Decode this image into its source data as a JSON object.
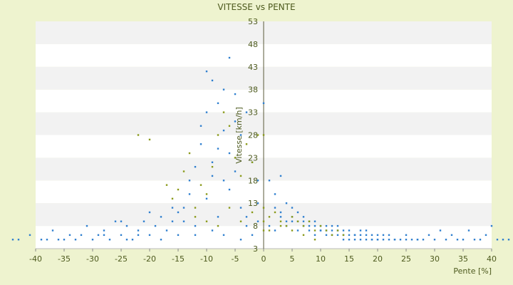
{
  "chart_data": {
    "type": "scatter",
    "title": "VITESSE vs PENTE",
    "xlabel": "Pente [%]",
    "ylabel": "Vitesse [km/h]",
    "xlim": [
      -40,
      40
    ],
    "ylim": [
      3,
      53
    ],
    "x_ticks": [
      "-40",
      "-35",
      "-30",
      "-25",
      "-20",
      "-15",
      "-10",
      "-5",
      "0",
      "5",
      "10",
      "15",
      "20",
      "25",
      "30",
      "35",
      "40"
    ],
    "y_ticks": [
      "3",
      "8",
      "13",
      "18",
      "23",
      "28",
      "33",
      "38",
      "43",
      "48",
      "53"
    ],
    "grid": "horizontal alternating bands",
    "colors": {
      "background": "#eef3cf",
      "plot_band_light": "#ffffff",
      "plot_band_dark": "#f2f2f2",
      "series_blue": "#2f7fcf",
      "series_olive": "#8a9a1a",
      "axis": "#4d5a1e"
    },
    "series": [
      {
        "color": "#2f7fcf",
        "points": [
          [
            -44,
            5
          ],
          [
            -43,
            5
          ],
          [
            -41,
            6
          ],
          [
            -39,
            5
          ],
          [
            -38,
            5
          ],
          [
            -37,
            7
          ],
          [
            -36,
            5
          ],
          [
            -35,
            5
          ],
          [
            -34,
            6
          ],
          [
            -33,
            5
          ],
          [
            -32,
            6
          ],
          [
            -31,
            8
          ],
          [
            -30,
            5
          ],
          [
            -29,
            6
          ],
          [
            -28,
            7
          ],
          [
            -27,
            5
          ],
          [
            -26,
            9
          ],
          [
            -25,
            6
          ],
          [
            -24,
            8
          ],
          [
            -23,
            5
          ],
          [
            -22,
            7
          ],
          [
            -21,
            9
          ],
          [
            -20,
            6
          ],
          [
            -19,
            8
          ],
          [
            -18,
            10
          ],
          [
            -17,
            7
          ],
          [
            -16,
            9
          ],
          [
            -15,
            6
          ],
          [
            -14,
            12
          ],
          [
            -13,
            15
          ],
          [
            -12,
            21
          ],
          [
            -11,
            30
          ],
          [
            -10,
            42
          ],
          [
            -9,
            40
          ],
          [
            -8,
            35
          ],
          [
            -7,
            38
          ],
          [
            -6,
            45
          ],
          [
            -5,
            37
          ],
          [
            -4,
            28
          ],
          [
            -3,
            33
          ],
          [
            -2,
            22
          ],
          [
            -1,
            18
          ],
          [
            0,
            35
          ],
          [
            -25,
            9
          ],
          [
            -22,
            6
          ],
          [
            -18,
            5
          ],
          [
            -15,
            11
          ],
          [
            -12,
            8
          ],
          [
            -10,
            14
          ],
          [
            -8,
            10
          ],
          [
            -6,
            16
          ],
          [
            -5,
            20
          ],
          [
            -4,
            12
          ],
          [
            -3,
            8
          ],
          [
            -2,
            6
          ],
          [
            -1,
            9
          ],
          [
            -11,
            26
          ],
          [
            -9,
            22
          ],
          [
            -8,
            25
          ],
          [
            -7,
            29
          ],
          [
            -6,
            24
          ],
          [
            -5,
            31
          ],
          [
            -10,
            33
          ],
          [
            -9,
            19
          ],
          [
            -7,
            18
          ],
          [
            -13,
            18
          ],
          [
            -14,
            9
          ],
          [
            -16,
            12
          ],
          [
            -20,
            11
          ],
          [
            -24,
            5
          ],
          [
            -28,
            6
          ],
          [
            -12,
            6
          ],
          [
            -9,
            7
          ],
          [
            -7,
            6
          ],
          [
            -4,
            5
          ],
          [
            -3,
            10
          ],
          [
            -1,
            13
          ],
          [
            1,
            8
          ],
          [
            2,
            7
          ],
          [
            3,
            10
          ],
          [
            4,
            8
          ],
          [
            5,
            9
          ],
          [
            6,
            7
          ],
          [
            7,
            8
          ],
          [
            8,
            7
          ],
          [
            9,
            6
          ],
          [
            10,
            7
          ],
          [
            11,
            6
          ],
          [
            12,
            7
          ],
          [
            13,
            6
          ],
          [
            14,
            6
          ],
          [
            15,
            5
          ],
          [
            16,
            6
          ],
          [
            17,
            5
          ],
          [
            18,
            5
          ],
          [
            19,
            6
          ],
          [
            20,
            5
          ],
          [
            21,
            5
          ],
          [
            22,
            6
          ],
          [
            23,
            5
          ],
          [
            24,
            5
          ],
          [
            25,
            6
          ],
          [
            26,
            5
          ],
          [
            27,
            5
          ],
          [
            28,
            5
          ],
          [
            30,
            5
          ],
          [
            31,
            7
          ],
          [
            33,
            6
          ],
          [
            35,
            5
          ],
          [
            36,
            7
          ],
          [
            38,
            5
          ],
          [
            40,
            8
          ],
          [
            42,
            5
          ],
          [
            43,
            5
          ],
          [
            2,
            12
          ],
          [
            3,
            11
          ],
          [
            4,
            9
          ],
          [
            5,
            10
          ],
          [
            6,
            9
          ],
          [
            7,
            10
          ],
          [
            8,
            9
          ],
          [
            9,
            9
          ],
          [
            10,
            8
          ],
          [
            11,
            8
          ],
          [
            12,
            8
          ],
          [
            13,
            7
          ],
          [
            14,
            7
          ],
          [
            15,
            6
          ],
          [
            16,
            6
          ],
          [
            17,
            7
          ],
          [
            18,
            6
          ],
          [
            19,
            5
          ],
          [
            20,
            5
          ],
          [
            21,
            6
          ],
          [
            22,
            5
          ],
          [
            23,
            5
          ],
          [
            25,
            5
          ],
          [
            27,
            5
          ],
          [
            29,
            6
          ],
          [
            32,
            5
          ],
          [
            34,
            5
          ],
          [
            37,
            5
          ],
          [
            39,
            6
          ],
          [
            41,
            5
          ],
          [
            1,
            18
          ],
          [
            2,
            15
          ],
          [
            3,
            19
          ],
          [
            4,
            13
          ],
          [
            5,
            12
          ],
          [
            6,
            11
          ],
          [
            7,
            9
          ],
          [
            8,
            8
          ],
          [
            9,
            8
          ],
          [
            10,
            7
          ],
          [
            11,
            7
          ],
          [
            12,
            6
          ],
          [
            13,
            8
          ],
          [
            14,
            5
          ],
          [
            15,
            7
          ],
          [
            16,
            5
          ],
          [
            17,
            6
          ],
          [
            18,
            7
          ],
          [
            19,
            5
          ],
          [
            20,
            6
          ]
        ]
      },
      {
        "color": "#8a9a1a",
        "points": [
          [
            -22,
            28
          ],
          [
            -20,
            27
          ],
          [
            -17,
            17
          ],
          [
            -16,
            14
          ],
          [
            -15,
            16
          ],
          [
            -14,
            20
          ],
          [
            -13,
            24
          ],
          [
            -12,
            12
          ],
          [
            -11,
            17
          ],
          [
            -10,
            15
          ],
          [
            -9,
            21
          ],
          [
            -8,
            28
          ],
          [
            -7,
            33
          ],
          [
            -6,
            30
          ],
          [
            -5,
            23
          ],
          [
            -4,
            19
          ],
          [
            -3,
            26
          ],
          [
            -2,
            22
          ],
          [
            -1,
            28
          ],
          [
            0,
            28
          ],
          [
            0,
            12
          ],
          [
            0,
            9
          ],
          [
            0,
            7
          ],
          [
            1,
            10
          ],
          [
            2,
            11
          ],
          [
            3,
            9
          ],
          [
            4,
            8
          ],
          [
            5,
            10
          ],
          [
            6,
            9
          ],
          [
            7,
            8
          ],
          [
            8,
            9
          ],
          [
            9,
            7
          ],
          [
            10,
            8
          ],
          [
            11,
            7
          ],
          [
            12,
            6
          ],
          [
            13,
            7
          ],
          [
            14,
            6
          ],
          [
            -12,
            10
          ],
          [
            -10,
            9
          ],
          [
            -8,
            8
          ],
          [
            -6,
            12
          ],
          [
            -4,
            9
          ],
          [
            -2,
            11
          ],
          [
            1,
            7
          ],
          [
            3,
            8
          ],
          [
            5,
            7
          ],
          [
            7,
            6
          ],
          [
            9,
            5
          ]
        ]
      }
    ]
  }
}
